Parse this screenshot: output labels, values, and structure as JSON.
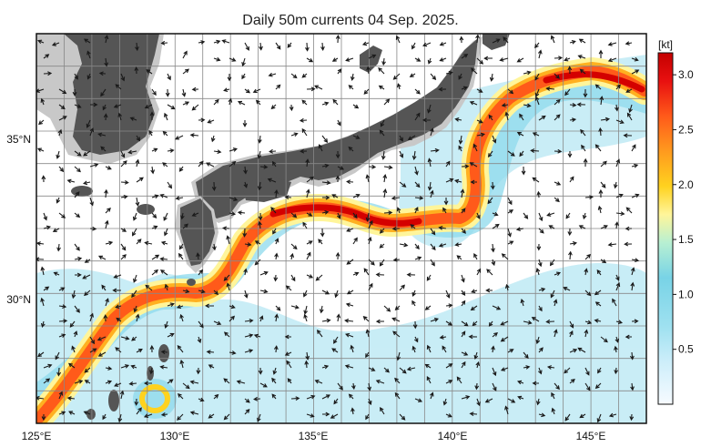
{
  "map": {
    "title": "Daily 50m currents 04 Sep. 2025.",
    "lon_labels": [
      "125°E",
      "130°E",
      "135°E",
      "140°E",
      "145°E"
    ],
    "lat_labels": [
      "35°N",
      "30°N"
    ],
    "lon_range": [
      125,
      147
    ],
    "lat_range": [
      26,
      38
    ]
  },
  "colorbar": {
    "unit_label": "[kt]",
    "ticks": [
      "3.0",
      "2.5",
      "2.0",
      "1.5",
      "1.0",
      "0.5"
    ],
    "range": [
      0,
      3.2
    ],
    "colors": [
      "#f7fbff",
      "#cdeefa",
      "#9fe1f0",
      "#78d3e6",
      "#b8f0d2",
      "#fff59a",
      "#ffd21f",
      "#ff9a1e",
      "#ff5a1a",
      "#e81010",
      "#c40000"
    ]
  },
  "colors": {
    "sea": "#ffffff",
    "land": "#555555",
    "land_shelf": "#c8c8c8",
    "grid": "#888888",
    "arrow": "#1a1a1a"
  }
}
